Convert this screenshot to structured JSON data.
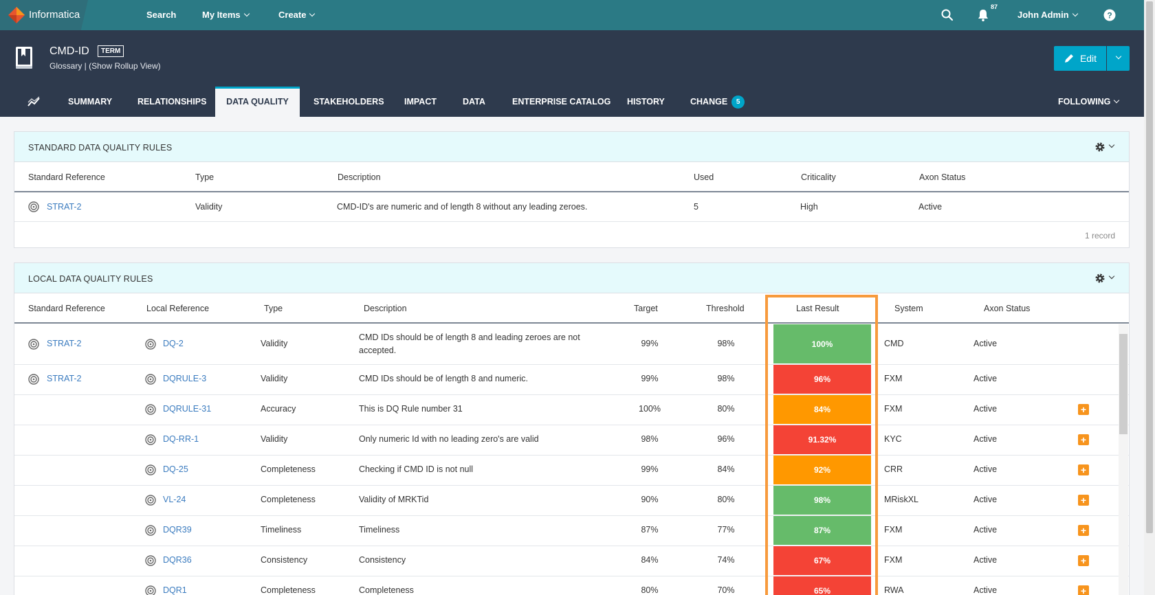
{
  "topbar": {
    "logo_text": "Informatica",
    "nav": [
      {
        "label": "Search"
      },
      {
        "label": "My Items"
      },
      {
        "label": "Create"
      }
    ],
    "notification_count": "87",
    "user_name": "John Admin"
  },
  "term": {
    "title": "CMD-ID",
    "badge": "TERM",
    "subtitle": "Glossary | (Show Rollup View)",
    "edit_label": "Edit"
  },
  "tabs": {
    "items": [
      {
        "label": "SUMMARY"
      },
      {
        "label": "RELATIONSHIPS"
      },
      {
        "label": "DATA QUALITY"
      },
      {
        "label": "STAKEHOLDERS"
      },
      {
        "label": "IMPACT"
      },
      {
        "label": "DATA"
      },
      {
        "label": "ENTERPRISE CATALOG"
      },
      {
        "label": "HISTORY"
      },
      {
        "label": "CHANGE"
      }
    ],
    "change_count": "5",
    "following_label": "FOLLOWING"
  },
  "standard": {
    "title": "STANDARD DATA QUALITY RULES",
    "columns": [
      "Standard Reference",
      "Type",
      "Description",
      "Used",
      "Criticality",
      "Axon Status"
    ],
    "rows": [
      {
        "ref": "STRAT-2",
        "type": "Validity",
        "description": "CMD-ID's are numeric and of length 8 without any leading zeroes.",
        "used": "5",
        "criticality": "High",
        "status": "Active"
      }
    ],
    "record_count": "1 record"
  },
  "local": {
    "title": "LOCAL DATA QUALITY RULES",
    "columns": [
      "Standard Reference",
      "Local Reference",
      "Type",
      "Description",
      "Target",
      "Threshold",
      "Last Result",
      "System",
      "Axon Status"
    ],
    "colors": {
      "green": "#66bb6a",
      "red": "#f44336",
      "orange": "#ff9800"
    },
    "rows": [
      {
        "std": "STRAT-2",
        "local": "DQ-2",
        "type": "Validity",
        "description_1": "CMD IDs should be of length 8 and leading zeroes are not",
        "description_2": "accepted.",
        "target": "99%",
        "threshold": "98%",
        "result": "100%",
        "color": "green",
        "system": "CMD",
        "status": "Active"
      },
      {
        "std": "STRAT-2",
        "local": "DQRULE-3",
        "type": "Validity",
        "description_1": "CMD IDs should be of length 8 and numeric.",
        "description_2": "",
        "target": "99%",
        "threshold": "98%",
        "result": "96%",
        "color": "red",
        "system": "FXM",
        "status": "Active"
      },
      {
        "std": "",
        "local": "DQRULE-31",
        "type": "Accuracy",
        "description_1": "This is DQ Rule number 31",
        "description_2": "",
        "target": "100%",
        "threshold": "80%",
        "result": "84%",
        "color": "orange",
        "system": "FXM",
        "status": "Active",
        "plus": true
      },
      {
        "std": "",
        "local": "DQ-RR-1",
        "type": "Validity",
        "description_1": "Only numeric Id with no leading zero's are valid",
        "description_2": "",
        "target": "98%",
        "threshold": "96%",
        "result": "91.32%",
        "color": "red",
        "system": "KYC",
        "status": "Active",
        "plus": true
      },
      {
        "std": "",
        "local": "DQ-25",
        "type": "Completeness",
        "description_1": "Checking if CMD ID is not null",
        "description_2": "",
        "target": "99%",
        "threshold": "84%",
        "result": "92%",
        "color": "orange",
        "system": "CRR",
        "status": "Active",
        "plus": true
      },
      {
        "std": "",
        "local": "VL-24",
        "type": "Completeness",
        "description_1": "Validity of MRKTid",
        "description_2": "",
        "target": "90%",
        "threshold": "80%",
        "result": "98%",
        "color": "green",
        "system": "MRiskXL",
        "status": "Active",
        "plus": true
      },
      {
        "std": "",
        "local": "DQR39",
        "type": "Timeliness",
        "description_1": "Timeliness",
        "description_2": "",
        "target": "87%",
        "threshold": "77%",
        "result": "87%",
        "color": "green",
        "system": "FXM",
        "status": "Active",
        "plus": true
      },
      {
        "std": "",
        "local": "DQR36",
        "type": "Consistency",
        "description_1": "Consistency",
        "description_2": "",
        "target": "84%",
        "threshold": "74%",
        "result": "67%",
        "color": "red",
        "system": "FXM",
        "status": "Active",
        "plus": true
      },
      {
        "std": "",
        "local": "DQR1",
        "type": "Completeness",
        "description_1": "Completeness",
        "description_2": "",
        "target": "80%",
        "threshold": "70%",
        "result": "65%",
        "color": "red",
        "system": "RWA",
        "status": "Active",
        "plus": true
      }
    ]
  }
}
